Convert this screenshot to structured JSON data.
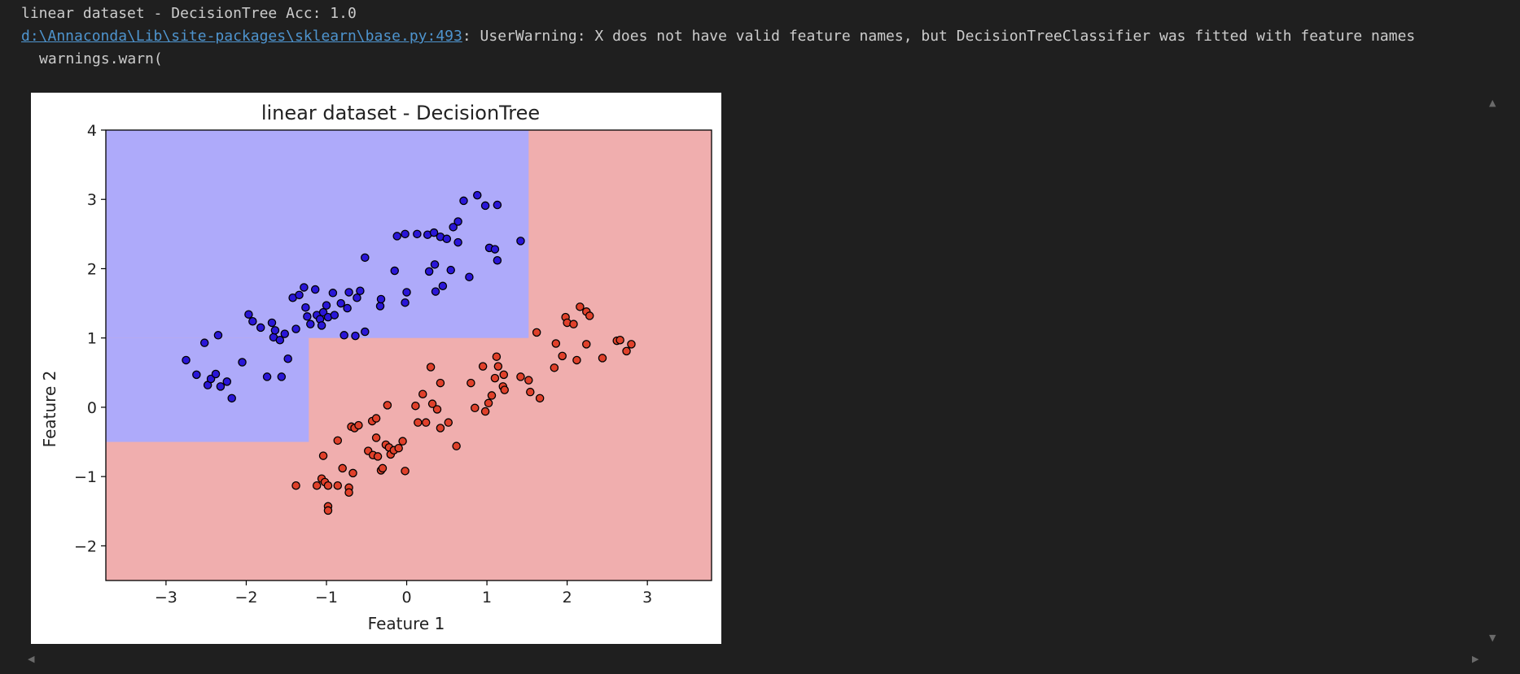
{
  "output": {
    "line1": "linear dataset - DecisionTree Acc: 1.0",
    "warning_link": "d:\\Annaconda\\Lib\\site-packages\\sklearn\\base.py:493",
    "warning_text": ": UserWarning: X does not have valid feature names, but DecisionTreeClassifier was fitted with feature names",
    "line3": "warnings.warn("
  },
  "chart_data": {
    "type": "scatter",
    "title": "linear dataset - DecisionTree",
    "xlabel": "Feature 1",
    "ylabel": "Feature 2",
    "xlim": [
      -3.75,
      3.8
    ],
    "ylim": [
      -2.5,
      4.0
    ],
    "xticks": [
      -3,
      -2,
      -1,
      0,
      1,
      2,
      3
    ],
    "yticks": [
      -2,
      -1,
      0,
      1,
      2,
      3,
      4
    ],
    "grid": false,
    "colors": {
      "class0_region": "#aeaafa",
      "class1_region": "#f0aeae",
      "class0_point": "#2a16d8",
      "class1_point": "#e0402a",
      "point_edge": "#000000"
    },
    "decision_regions": {
      "class0": [
        {
          "x": [
            -3.75,
            1.52
          ],
          "y": [
            1.0,
            4.0
          ]
        },
        {
          "x": [
            -3.75,
            -1.22
          ],
          "y": [
            -0.5,
            1.0
          ]
        }
      ],
      "class1": "rest"
    },
    "series": [
      {
        "class": 0,
        "points": [
          [
            -2.75,
            0.68
          ],
          [
            -2.62,
            0.47
          ],
          [
            -2.52,
            0.93
          ],
          [
            -2.48,
            0.32
          ],
          [
            -2.44,
            0.41
          ],
          [
            -2.38,
            0.48
          ],
          [
            -2.35,
            1.04
          ],
          [
            -2.32,
            0.3
          ],
          [
            -2.24,
            0.37
          ],
          [
            -2.18,
            0.13
          ],
          [
            -2.05,
            0.65
          ],
          [
            -1.97,
            1.34
          ],
          [
            -1.92,
            1.24
          ],
          [
            -1.82,
            1.15
          ],
          [
            -1.74,
            0.44
          ],
          [
            -1.68,
            1.22
          ],
          [
            -1.66,
            1.01
          ],
          [
            -1.64,
            1.11
          ],
          [
            -1.58,
            0.97
          ],
          [
            -1.56,
            0.44
          ],
          [
            -1.52,
            1.06
          ],
          [
            -1.48,
            0.7
          ],
          [
            -1.42,
            1.58
          ],
          [
            -1.38,
            1.13
          ],
          [
            -1.34,
            1.62
          ],
          [
            -1.28,
            1.73
          ],
          [
            -1.26,
            1.44
          ],
          [
            -1.24,
            1.31
          ],
          [
            -1.2,
            1.2
          ],
          [
            -1.14,
            1.7
          ],
          [
            -1.12,
            1.33
          ],
          [
            -1.08,
            1.27
          ],
          [
            -1.06,
            1.18
          ],
          [
            -1.04,
            1.37
          ],
          [
            -1.0,
            1.47
          ],
          [
            -0.98,
            1.3
          ],
          [
            -0.92,
            1.65
          ],
          [
            -0.9,
            1.33
          ],
          [
            -0.82,
            1.5
          ],
          [
            -0.78,
            1.04
          ],
          [
            -0.74,
            1.43
          ],
          [
            -0.72,
            1.66
          ],
          [
            -0.64,
            1.03
          ],
          [
            -0.62,
            1.58
          ],
          [
            -0.58,
            1.68
          ],
          [
            -0.52,
            2.16
          ],
          [
            -0.52,
            1.09
          ],
          [
            -0.33,
            1.46
          ],
          [
            -0.32,
            1.56
          ],
          [
            -0.15,
            1.97
          ],
          [
            -0.12,
            2.47
          ],
          [
            -0.02,
            2.5
          ],
          [
            -0.02,
            1.51
          ],
          [
            0.0,
            1.66
          ],
          [
            0.13,
            2.5
          ],
          [
            0.26,
            2.49
          ],
          [
            0.28,
            1.96
          ],
          [
            0.34,
            2.52
          ],
          [
            0.35,
            2.06
          ],
          [
            0.36,
            1.67
          ],
          [
            0.42,
            2.46
          ],
          [
            0.45,
            1.75
          ],
          [
            0.5,
            2.43
          ],
          [
            0.55,
            1.98
          ],
          [
            0.58,
            2.6
          ],
          [
            0.64,
            2.38
          ],
          [
            0.64,
            2.68
          ],
          [
            0.71,
            2.98
          ],
          [
            0.78,
            1.88
          ],
          [
            0.88,
            3.06
          ],
          [
            0.98,
            2.91
          ],
          [
            1.03,
            2.3
          ],
          [
            1.1,
            2.28
          ],
          [
            1.13,
            2.92
          ],
          [
            1.13,
            2.12
          ],
          [
            1.42,
            2.4
          ]
        ]
      },
      {
        "class": 1,
        "points": [
          [
            -1.38,
            -1.13
          ],
          [
            -1.12,
            -1.13
          ],
          [
            -1.06,
            -1.03
          ],
          [
            -1.04,
            -0.7
          ],
          [
            -1.02,
            -1.08
          ],
          [
            -0.98,
            -1.13
          ],
          [
            -0.98,
            -1.43
          ],
          [
            -0.98,
            -1.49
          ],
          [
            -0.86,
            -0.48
          ],
          [
            -0.86,
            -1.13
          ],
          [
            -0.8,
            -0.88
          ],
          [
            -0.72,
            -1.16
          ],
          [
            -0.72,
            -1.23
          ],
          [
            -0.69,
            -0.28
          ],
          [
            -0.67,
            -0.95
          ],
          [
            -0.65,
            -0.3
          ],
          [
            -0.6,
            -0.26
          ],
          [
            -0.48,
            -0.63
          ],
          [
            -0.43,
            -0.2
          ],
          [
            -0.42,
            -0.69
          ],
          [
            -0.38,
            -0.16
          ],
          [
            -0.38,
            -0.44
          ],
          [
            -0.36,
            -0.71
          ],
          [
            -0.32,
            -0.91
          ],
          [
            -0.3,
            -0.88
          ],
          [
            -0.26,
            -0.54
          ],
          [
            -0.24,
            0.03
          ],
          [
            -0.22,
            -0.58
          ],
          [
            -0.2,
            -0.68
          ],
          [
            -0.16,
            -0.62
          ],
          [
            -0.1,
            -0.59
          ],
          [
            -0.05,
            -0.49
          ],
          [
            -0.02,
            -0.92
          ],
          [
            0.11,
            0.02
          ],
          [
            0.14,
            -0.22
          ],
          [
            0.2,
            0.19
          ],
          [
            0.24,
            -0.22
          ],
          [
            0.3,
            0.58
          ],
          [
            0.32,
            0.05
          ],
          [
            0.38,
            -0.03
          ],
          [
            0.42,
            0.35
          ],
          [
            0.42,
            -0.3
          ],
          [
            0.52,
            -0.22
          ],
          [
            0.62,
            -0.56
          ],
          [
            0.8,
            0.35
          ],
          [
            0.85,
            -0.01
          ],
          [
            0.95,
            0.59
          ],
          [
            0.98,
            -0.06
          ],
          [
            1.02,
            0.06
          ],
          [
            1.06,
            0.17
          ],
          [
            1.1,
            0.42
          ],
          [
            1.12,
            0.73
          ],
          [
            1.14,
            0.59
          ],
          [
            1.2,
            0.3
          ],
          [
            1.21,
            0.47
          ],
          [
            1.22,
            0.25
          ],
          [
            1.42,
            0.44
          ],
          [
            1.52,
            0.39
          ],
          [
            1.54,
            0.22
          ],
          [
            1.62,
            1.08
          ],
          [
            1.66,
            0.13
          ],
          [
            1.84,
            0.57
          ],
          [
            1.86,
            0.92
          ],
          [
            1.94,
            0.74
          ],
          [
            1.98,
            1.3
          ],
          [
            2.0,
            1.22
          ],
          [
            2.08,
            1.2
          ],
          [
            2.12,
            0.68
          ],
          [
            2.16,
            1.45
          ],
          [
            2.24,
            0.91
          ],
          [
            2.24,
            1.38
          ],
          [
            2.28,
            1.32
          ],
          [
            2.44,
            0.71
          ],
          [
            2.62,
            0.96
          ],
          [
            2.66,
            0.97
          ],
          [
            2.74,
            0.81
          ],
          [
            2.8,
            0.91
          ]
        ]
      }
    ]
  }
}
